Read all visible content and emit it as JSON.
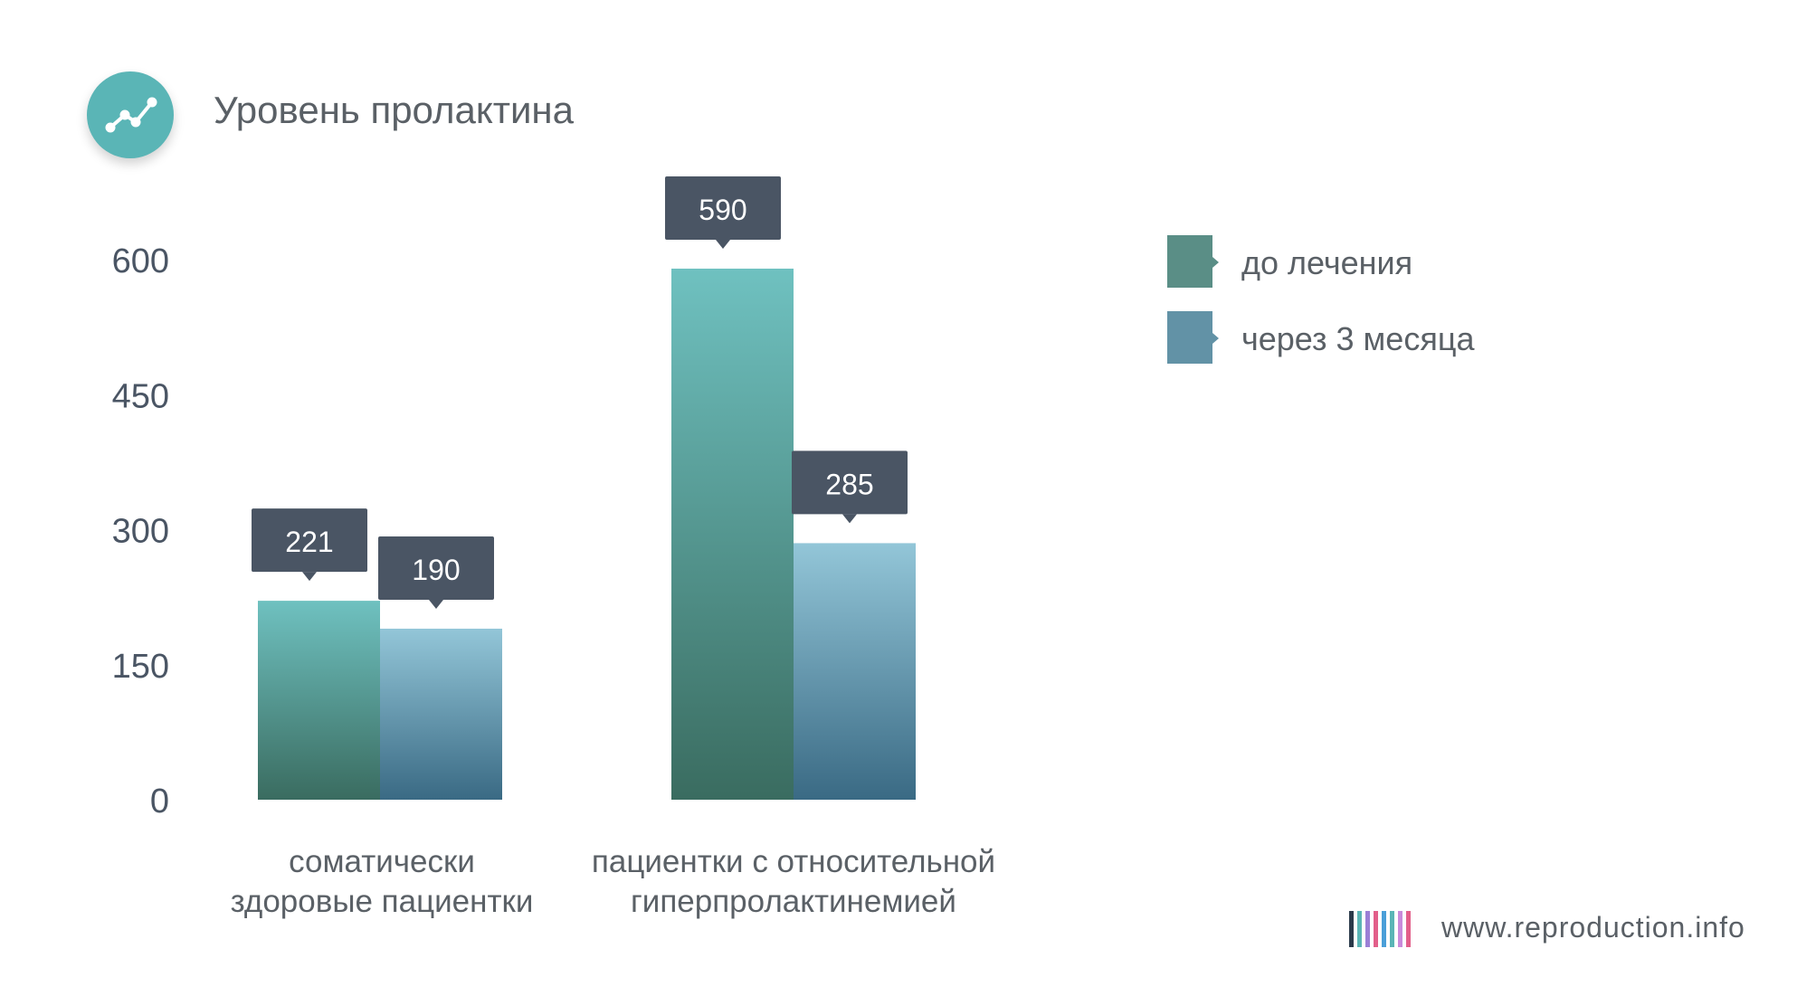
{
  "title": "Уровень пролактина",
  "icon": "line-chart-icon",
  "chart_data": {
    "type": "bar",
    "categories": [
      "соматически здоровые пациентки",
      "пациентки с относительной гиперпролактинемией"
    ],
    "category_lines": [
      [
        "соматически",
        "здоровые пациентки"
      ],
      [
        "пациентки с относительной",
        "гиперпролактинемией"
      ]
    ],
    "series": [
      {
        "name": "до лечения",
        "values": [
          221,
          590
        ],
        "color": "#5a8e86"
      },
      {
        "name": "через 3 месяца",
        "values": [
          190,
          285
        ],
        "color": "#6292a6"
      }
    ],
    "ylim": [
      0,
      600
    ],
    "yticks": [
      "0",
      "150",
      "300",
      "450",
      "600"
    ],
    "grid": true,
    "legend": "right",
    "data_labels": [
      "221",
      "190",
      "590",
      "285"
    ]
  },
  "legend": [
    {
      "label": "до лечения",
      "color": "#5a8e86"
    },
    {
      "label": "через 3 месяца",
      "color": "#6292a6"
    }
  ],
  "brand": {
    "text": "www.reproduction.info",
    "colors": [
      "#2b3a4a",
      "#5ab5b6",
      "#9b7fd6",
      "#e25f8a",
      "#4a9fd8",
      "#5ab5b6",
      "#c98bdb",
      "#e25f8a"
    ]
  },
  "tooltip_color": "#4a5564",
  "axis_color": "#4a5564"
}
